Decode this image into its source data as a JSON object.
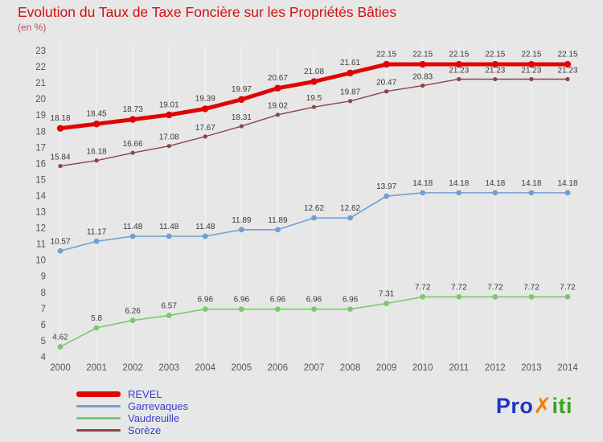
{
  "title": "Evolution du Taux de Taxe Foncière sur les Propriétés Bâties",
  "subtitle": "(en %)",
  "chart_data": {
    "type": "line",
    "x": [
      "2000",
      "2001",
      "2002",
      "2003",
      "2004",
      "2005",
      "2006",
      "2007",
      "2008",
      "2009",
      "2010",
      "2011",
      "2012",
      "2013",
      "2014"
    ],
    "ylim": [
      4,
      23
    ],
    "ytick_step": 1,
    "grid": "vertical",
    "legend_position": "bottom-left",
    "axis_color": "#555555",
    "point_label_color": "#3a3a3a",
    "series": [
      {
        "name": "REVEL",
        "color": "#e00505",
        "width": 5,
        "marker": 4.2,
        "values": [
          18.18,
          18.45,
          18.73,
          19.01,
          19.39,
          19.97,
          20.67,
          21.08,
          21.61,
          22.15,
          22.15,
          22.15,
          22.15,
          22.15,
          22.15
        ]
      },
      {
        "name": "Garrevaques",
        "color": "#6f9fd4",
        "width": 1.6,
        "marker": 3.4,
        "values": [
          10.57,
          11.17,
          11.48,
          11.48,
          11.48,
          11.89,
          11.89,
          12.62,
          12.62,
          13.97,
          14.18,
          14.18,
          14.18,
          14.18,
          14.18
        ]
      },
      {
        "name": "Vaudreuille",
        "color": "#7cc96f",
        "width": 1.6,
        "marker": 3.4,
        "values": [
          4.62,
          5.8,
          6.26,
          6.57,
          6.96,
          6.96,
          6.96,
          6.96,
          6.96,
          7.31,
          7.72,
          7.72,
          7.72,
          7.72,
          7.72
        ]
      },
      {
        "name": "Sorèze",
        "color": "#8c4545",
        "width": 1.4,
        "marker": 2.6,
        "values": [
          15.84,
          16.18,
          16.66,
          17.08,
          17.67,
          18.31,
          19.02,
          19.5,
          19.87,
          20.47,
          20.83,
          21.23,
          21.23,
          21.23,
          21.23
        ]
      }
    ]
  },
  "logo": {
    "parts": [
      {
        "text": "Pro",
        "color": "#1f35c4"
      },
      {
        "text": "✗",
        "color": "#f57d00"
      },
      {
        "text": "iti",
        "color": "#3aa417"
      }
    ]
  }
}
